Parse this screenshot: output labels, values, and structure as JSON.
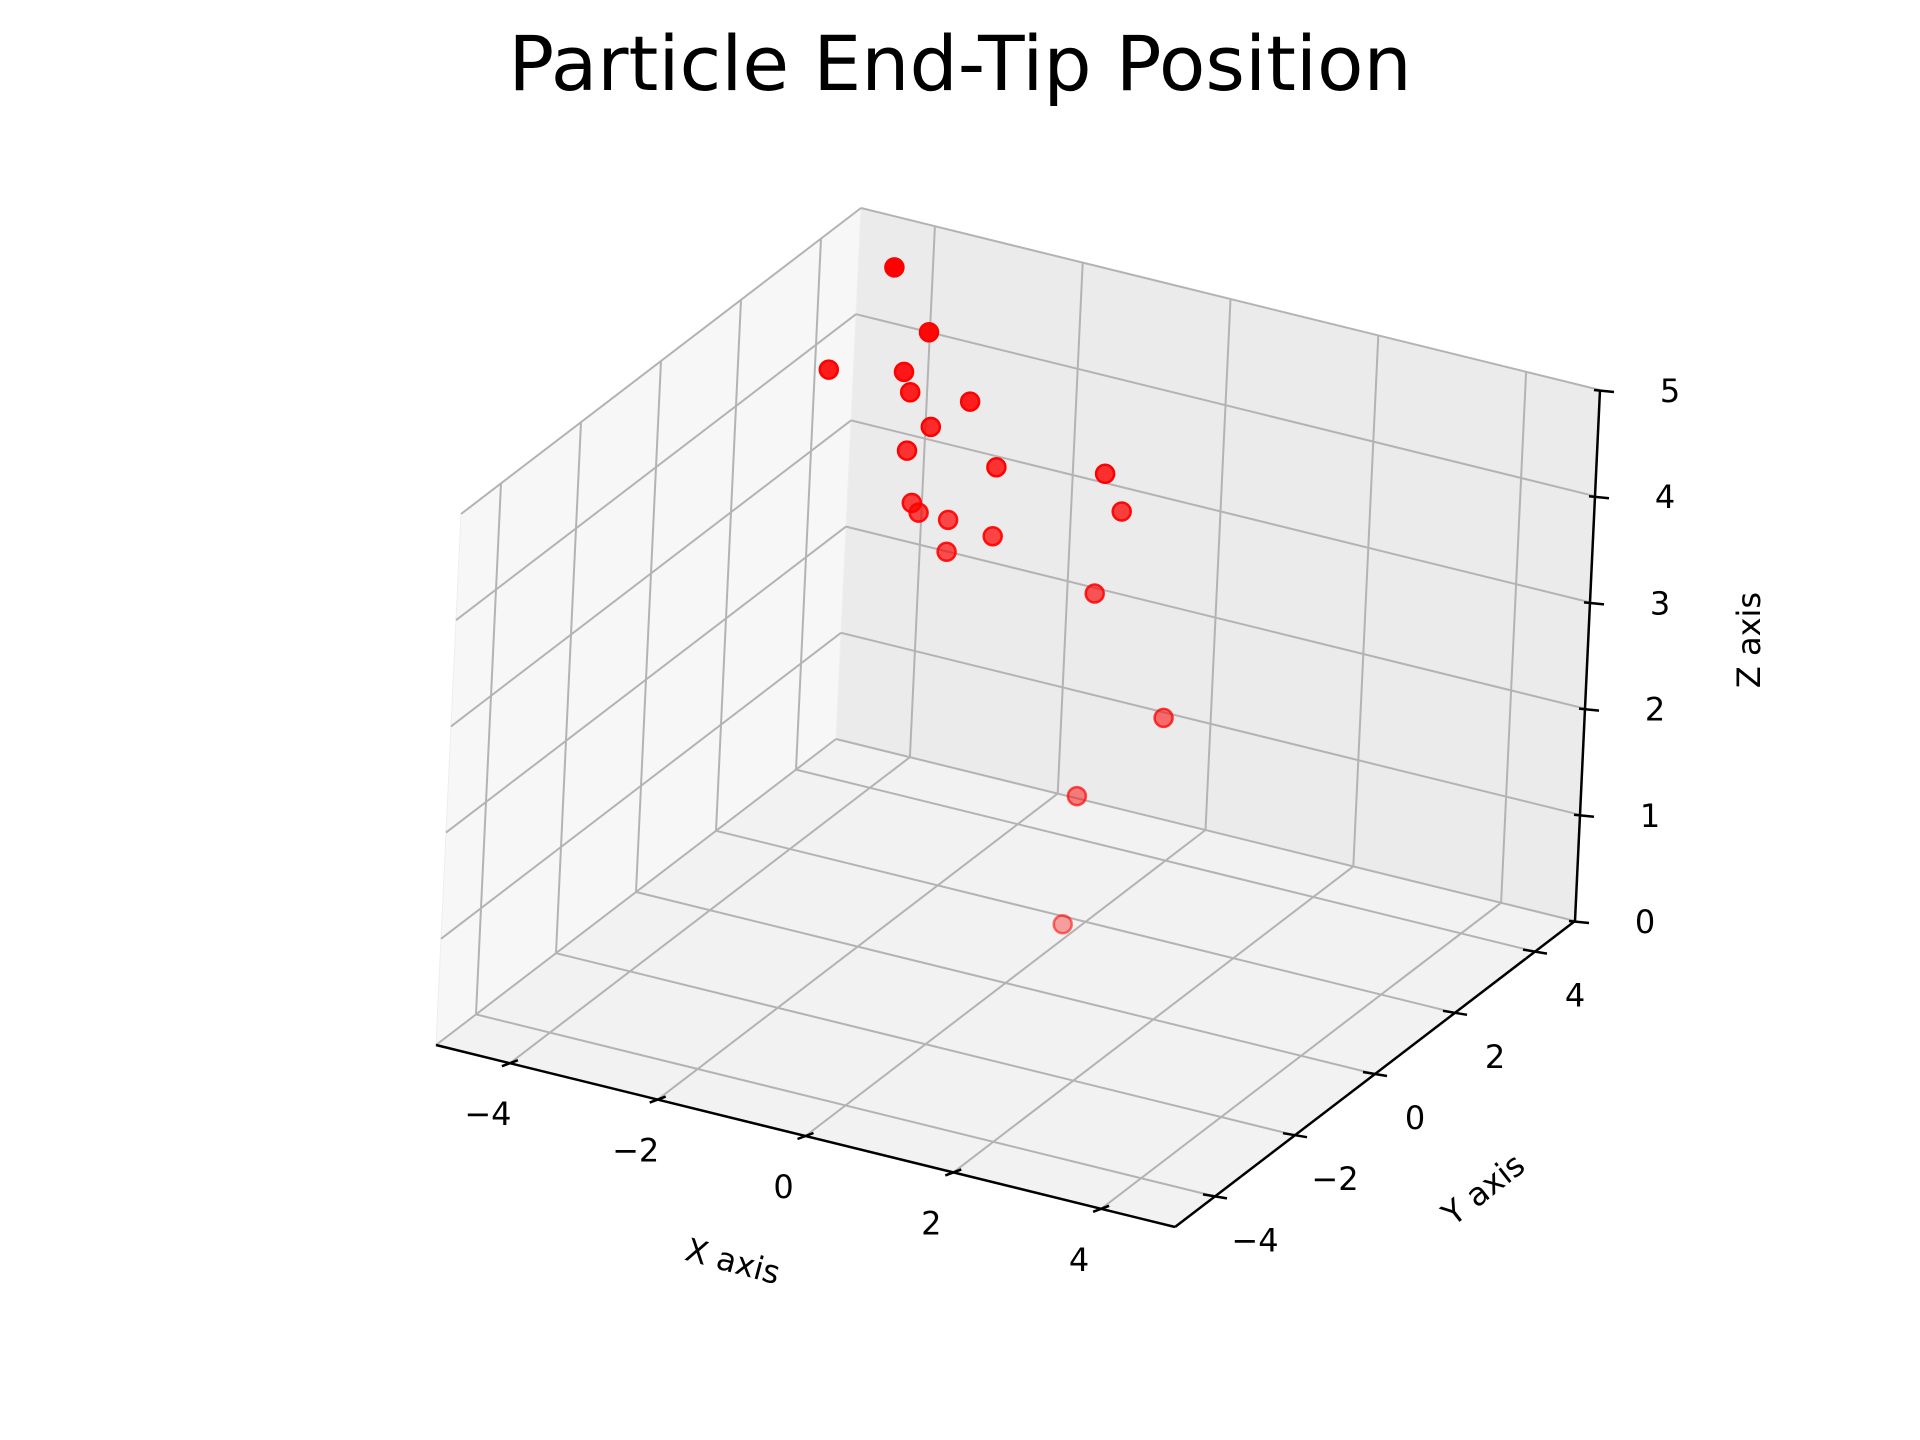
{
  "chart_data": {
    "type": "scatter",
    "projection": "3d",
    "title": "Particle End-Tip Position",
    "xlabel": "X axis",
    "ylabel": "Y axis",
    "zlabel": "Z axis",
    "xlim": [
      -5,
      5
    ],
    "ylim": [
      -5,
      5
    ],
    "zlim": [
      0,
      5
    ],
    "x_ticks": [
      "−4",
      "−2",
      "0",
      "2",
      "4"
    ],
    "y_ticks": [
      "−4",
      "−2",
      "0",
      "2",
      "4"
    ],
    "z_ticks": [
      "0",
      "1",
      "2",
      "3",
      "4",
      "5"
    ],
    "grid": true,
    "marker_color": "#ff0000",
    "points": [
      {
        "x": -4.0,
        "y": 4.0,
        "z": 4.9
      },
      {
        "x": -3.6,
        "y": 4.2,
        "z": 4.3
      },
      {
        "x": -4.4,
        "y": 3.2,
        "z": 4.1
      },
      {
        "x": -3.6,
        "y": 3.6,
        "z": 4.1
      },
      {
        "x": -3.4,
        "y": 3.4,
        "z": 4.0
      },
      {
        "x": -2.8,
        "y": 3.8,
        "z": 3.9
      },
      {
        "x": -3.0,
        "y": 3.2,
        "z": 3.8
      },
      {
        "x": -3.2,
        "y": 3.0,
        "z": 3.6
      },
      {
        "x": -2.2,
        "y": 3.4,
        "z": 3.5
      },
      {
        "x": -1.0,
        "y": 3.9,
        "z": 3.5
      },
      {
        "x": -0.6,
        "y": 3.6,
        "z": 3.3
      },
      {
        "x": -3.0,
        "y": 2.8,
        "z": 3.2
      },
      {
        "x": -2.8,
        "y": 2.6,
        "z": 3.2
      },
      {
        "x": -2.4,
        "y": 2.6,
        "z": 3.2
      },
      {
        "x": -2.0,
        "y": 3.0,
        "z": 3.0
      },
      {
        "x": -2.4,
        "y": 2.6,
        "z": 2.9
      },
      {
        "x": -0.6,
        "y": 3.0,
        "z": 2.7
      },
      {
        "x": 0.4,
        "y": 3.0,
        "z": 1.7
      },
      {
        "x": -0.4,
        "y": 2.4,
        "z": 1.0
      },
      {
        "x": -0.2,
        "y": 1.8,
        "z": 0.0
      }
    ]
  }
}
